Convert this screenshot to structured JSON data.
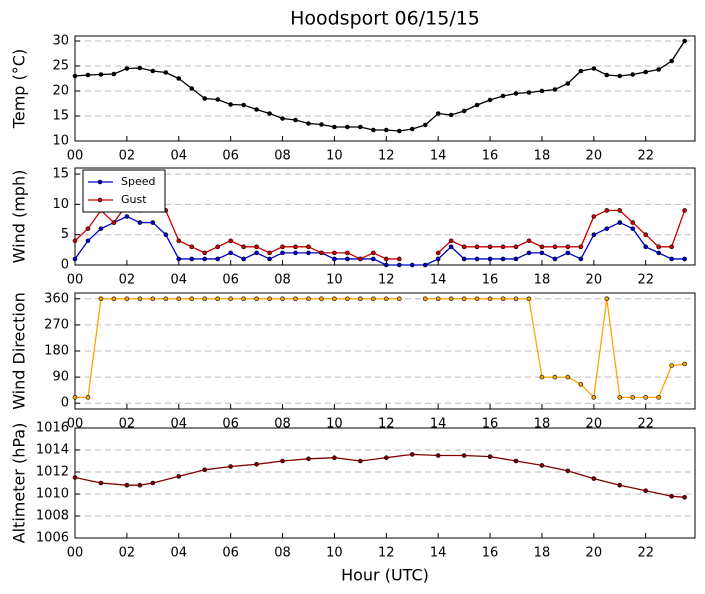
{
  "title": "Hoodsport 06/15/15",
  "xlabel": "Hour (UTC)",
  "chart_data": [
    {
      "type": "line",
      "ylabel": "Temp (°C)",
      "x": [
        0,
        0.5,
        1,
        1.5,
        2,
        2.5,
        3,
        3.5,
        4,
        4.5,
        5,
        5.5,
        6,
        6.5,
        7,
        7.5,
        8,
        8.5,
        9,
        9.5,
        10,
        10.5,
        11,
        11.5,
        12,
        12.5,
        13,
        13.5,
        14,
        14.5,
        15,
        15.5,
        16,
        16.5,
        17,
        17.5,
        18,
        18.5,
        19,
        19.5,
        20,
        20.5,
        21,
        21.5,
        22,
        22.5,
        23,
        23.5
      ],
      "series": [
        {
          "color": "#000000",
          "values": [
            23,
            23.2,
            23.3,
            23.4,
            24.5,
            24.6,
            24,
            23.7,
            22.5,
            20.5,
            18.5,
            18.3,
            17.3,
            17.2,
            16.3,
            15.5,
            14.5,
            14.2,
            13.5,
            13.3,
            12.8,
            12.8,
            12.8,
            12.2,
            12.2,
            12,
            12.4,
            13.2,
            15.5,
            15.2,
            16,
            17.2,
            18.2,
            19,
            19.5,
            19.7,
            20,
            20.3,
            21.5,
            24,
            24.5,
            23.2,
            23,
            23.3,
            23.8,
            24.3,
            26,
            30
          ]
        }
      ],
      "xlim": [
        0,
        23.9
      ],
      "ylim": [
        10,
        31
      ],
      "yticks": [
        10,
        15,
        20,
        25,
        30
      ],
      "xticks": [
        {
          "value": 0,
          "label": "00"
        },
        {
          "value": 2,
          "label": "02"
        },
        {
          "value": 4,
          "label": "04"
        },
        {
          "value": 6,
          "label": "06"
        },
        {
          "value": 8,
          "label": "08"
        },
        {
          "value": 10,
          "label": "10"
        },
        {
          "value": 12,
          "label": "12"
        },
        {
          "value": 14,
          "label": "14"
        },
        {
          "value": 16,
          "label": "16"
        },
        {
          "value": 18,
          "label": "18"
        },
        {
          "value": 20,
          "label": "20"
        },
        {
          "value": 22,
          "label": "22"
        }
      ],
      "grid": true
    },
    {
      "type": "line",
      "ylabel": "Wind (mph)",
      "x": [
        0,
        0.5,
        1,
        1.5,
        2,
        2.5,
        3,
        3.5,
        4,
        4.5,
        5,
        5.5,
        6,
        6.5,
        7,
        7.5,
        8,
        8.5,
        9,
        9.5,
        10,
        10.5,
        11,
        11.5,
        12,
        12.5,
        13,
        13.5,
        14,
        14.5,
        15,
        15.5,
        16,
        16.5,
        17,
        17.5,
        18,
        18.5,
        19,
        19.5,
        20,
        20.5,
        21,
        21.5,
        22,
        22.5,
        23,
        23.5
      ],
      "series": [
        {
          "name": "Speed",
          "color": "#0000cc",
          "values": [
            1,
            4,
            6,
            7,
            8,
            7,
            7,
            5,
            1,
            1,
            1,
            1,
            2,
            1,
            2,
            1,
            2,
            2,
            2,
            2,
            1,
            1,
            1,
            1,
            0,
            0,
            0,
            0,
            1,
            3,
            1,
            1,
            1,
            1,
            1,
            2,
            2,
            1,
            2,
            1,
            5,
            6,
            7,
            6,
            3,
            2,
            1,
            1
          ]
        },
        {
          "name": "Gust",
          "color": "#cc0000",
          "values": [
            4,
            6,
            9,
            7,
            10,
            9,
            10,
            9,
            4,
            3,
            2,
            3,
            4,
            3,
            3,
            2,
            3,
            3,
            3,
            2,
            2,
            2,
            1,
            2,
            1,
            1,
            null,
            null,
            2,
            4,
            3,
            3,
            3,
            3,
            3,
            4,
            3,
            3,
            3,
            3,
            8,
            9,
            9,
            7,
            5,
            3,
            3,
            9
          ]
        }
      ],
      "xlim": [
        0,
        23.9
      ],
      "ylim": [
        0,
        16
      ],
      "yticks": [
        0,
        5,
        10,
        15
      ],
      "xticks": [
        {
          "value": 0,
          "label": "00"
        },
        {
          "value": 2,
          "label": "02"
        },
        {
          "value": 4,
          "label": "04"
        },
        {
          "value": 6,
          "label": "06"
        },
        {
          "value": 8,
          "label": "08"
        },
        {
          "value": 10,
          "label": "10"
        },
        {
          "value": 12,
          "label": "12"
        },
        {
          "value": 14,
          "label": "14"
        },
        {
          "value": 16,
          "label": "16"
        },
        {
          "value": 18,
          "label": "18"
        },
        {
          "value": 20,
          "label": "20"
        },
        {
          "value": 22,
          "label": "22"
        }
      ],
      "grid": true,
      "legend": "upper left"
    },
    {
      "type": "line",
      "ylabel": "Wind Direction",
      "x": [
        0,
        0.5,
        1,
        1.5,
        2,
        2.5,
        3,
        3.5,
        4,
        4.5,
        5,
        5.5,
        6,
        6.5,
        7,
        7.5,
        8,
        8.5,
        9,
        9.5,
        10,
        10.5,
        11,
        11.5,
        12,
        12.5,
        13,
        13.5,
        14,
        14.5,
        15,
        15.5,
        16,
        16.5,
        17,
        17.5,
        18,
        18.5,
        19,
        19.5,
        20,
        20.5,
        21,
        21.5,
        22,
        22.5,
        23,
        23.5
      ],
      "series": [
        {
          "color": "#ffa500",
          "values": [
            20,
            20,
            360,
            360,
            360,
            360,
            360,
            360,
            360,
            360,
            360,
            360,
            360,
            360,
            360,
            360,
            360,
            360,
            360,
            360,
            360,
            360,
            360,
            360,
            360,
            360,
            null,
            360,
            360,
            360,
            360,
            360,
            360,
            360,
            360,
            360,
            90,
            90,
            90,
            65,
            20,
            360,
            20,
            20,
            20,
            20,
            130,
            135
          ]
        }
      ],
      "xlim": [
        0,
        23.9
      ],
      "ylim": [
        -20,
        380
      ],
      "yticks": [
        0,
        90,
        180,
        270,
        360
      ],
      "xticks": [
        {
          "value": 0,
          "label": "00"
        },
        {
          "value": 2,
          "label": "02"
        },
        {
          "value": 4,
          "label": "04"
        },
        {
          "value": 6,
          "label": "06"
        },
        {
          "value": 8,
          "label": "08"
        },
        {
          "value": 10,
          "label": "10"
        },
        {
          "value": 12,
          "label": "12"
        },
        {
          "value": 14,
          "label": "14"
        },
        {
          "value": 16,
          "label": "16"
        },
        {
          "value": 18,
          "label": "18"
        },
        {
          "value": 20,
          "label": "20"
        },
        {
          "value": 22,
          "label": "22"
        }
      ],
      "grid": true
    },
    {
      "type": "line",
      "ylabel": "Altimeter (hPa)",
      "x": [
        0,
        1,
        2,
        2.5,
        3,
        4,
        5,
        6,
        7,
        8,
        9,
        10,
        11,
        12,
        13,
        14,
        15,
        16,
        17,
        18,
        19,
        20,
        21,
        22,
        23,
        23.5
      ],
      "series": [
        {
          "color": "#800000",
          "values": [
            1011.5,
            1011,
            1010.8,
            1010.8,
            1011,
            1011.6,
            1012.2,
            1012.5,
            1012.7,
            1013,
            1013.2,
            1013.3,
            1013,
            1013.3,
            1013.6,
            1013.5,
            1013.5,
            1013.4,
            1013,
            1012.6,
            1012.1,
            1011.4,
            1010.8,
            1010.3,
            1009.8,
            1009.7
          ]
        }
      ],
      "xlim": [
        0,
        23.9
      ],
      "ylim": [
        1006,
        1016
      ],
      "yticks": [
        1006,
        1008,
        1010,
        1012,
        1014,
        1016
      ],
      "xticks": [
        {
          "value": 0,
          "label": "00"
        },
        {
          "value": 2,
          "label": "02"
        },
        {
          "value": 4,
          "label": "04"
        },
        {
          "value": 6,
          "label": "06"
        },
        {
          "value": 8,
          "label": "08"
        },
        {
          "value": 10,
          "label": "10"
        },
        {
          "value": 12,
          "label": "12"
        },
        {
          "value": 14,
          "label": "14"
        },
        {
          "value": 16,
          "label": "16"
        },
        {
          "value": 18,
          "label": "18"
        },
        {
          "value": 20,
          "label": "20"
        },
        {
          "value": 22,
          "label": "22"
        }
      ],
      "grid": true
    }
  ]
}
